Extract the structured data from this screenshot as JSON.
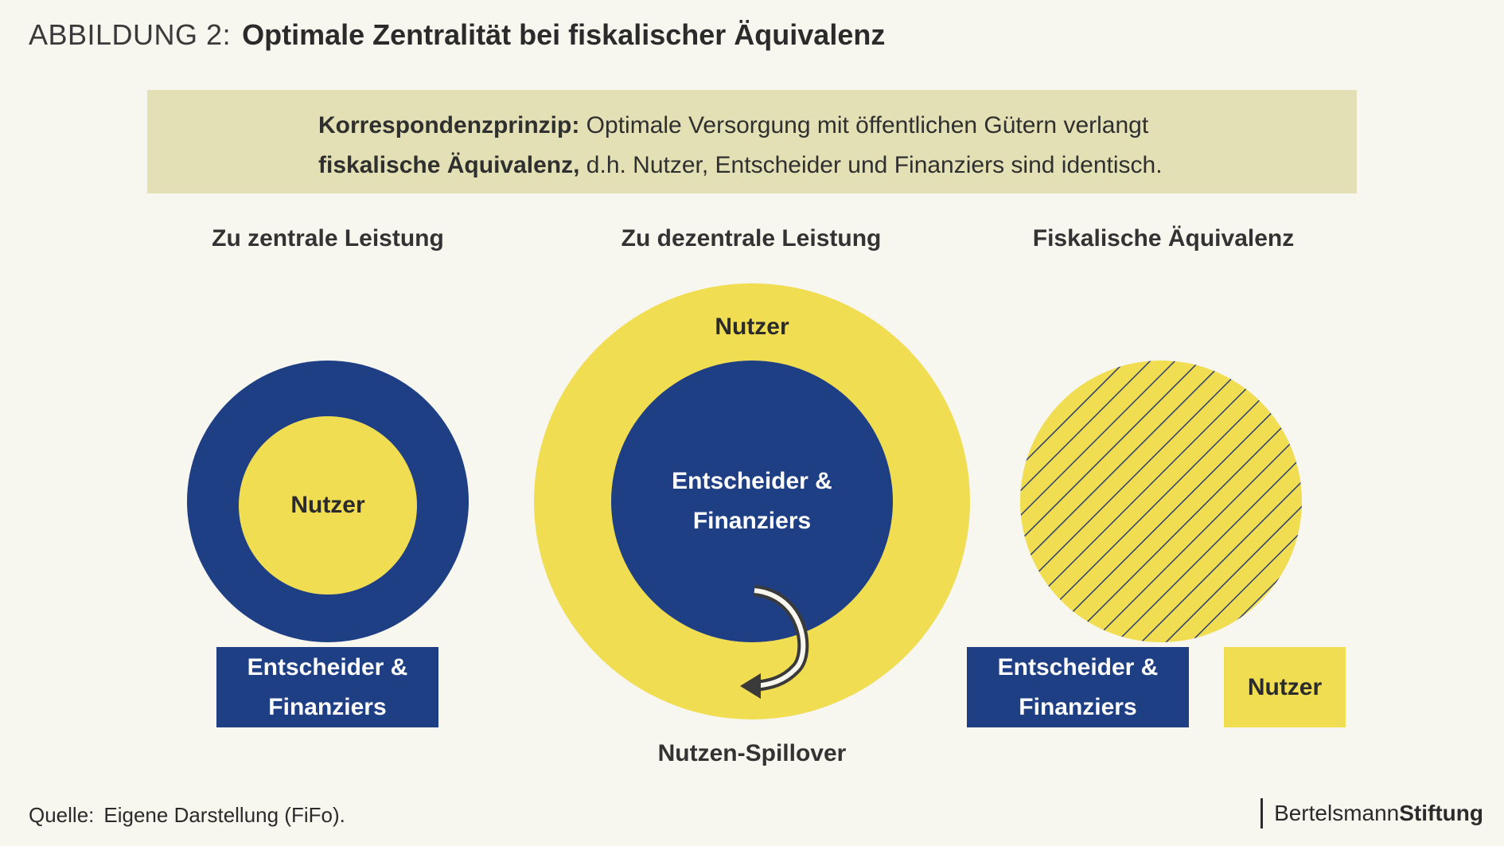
{
  "header": {
    "prefix": "ABBILDUNG 2:",
    "title": "Optimale Zentralität bei fiskalischer Äquivalenz"
  },
  "principle": {
    "term": "Korrespondenzprinzip:",
    "line1_rest": " Optimale Versorgung mit öffentlichen Gütern verlangt",
    "line2_term": "fiskalische Äquivalenz,",
    "line2_rest": " d.h. Nutzer, Entscheider und Finanziers sind identisch."
  },
  "columns": [
    {
      "title": "Zu zentrale Leistung",
      "inner_label": "Nutzer",
      "box_line1": "Entscheider &",
      "box_line2": "Finanziers"
    },
    {
      "title": "Zu dezentrale Leistung",
      "outer_label": "Nutzer",
      "inner_line1": "Entscheider &",
      "inner_line2": "Finanziers",
      "spillover_label": "Nutzen-Spillover"
    },
    {
      "title": "Fiskalische Äquivalenz",
      "box_line1": "Entscheider &",
      "box_line2": "Finanziers",
      "legend_label": "Nutzer"
    }
  ],
  "colors": {
    "navy": "#1f3f85",
    "yellow": "#f0dd52",
    "principle_bg": "#e2e0b4",
    "background": "#f7f6ef"
  },
  "footer": {
    "source_label": "Quelle:",
    "source_text": "Eigene Darstellung (FiFo).",
    "brand_part1": "Bertelsmann",
    "brand_part2": "Stiftung"
  }
}
